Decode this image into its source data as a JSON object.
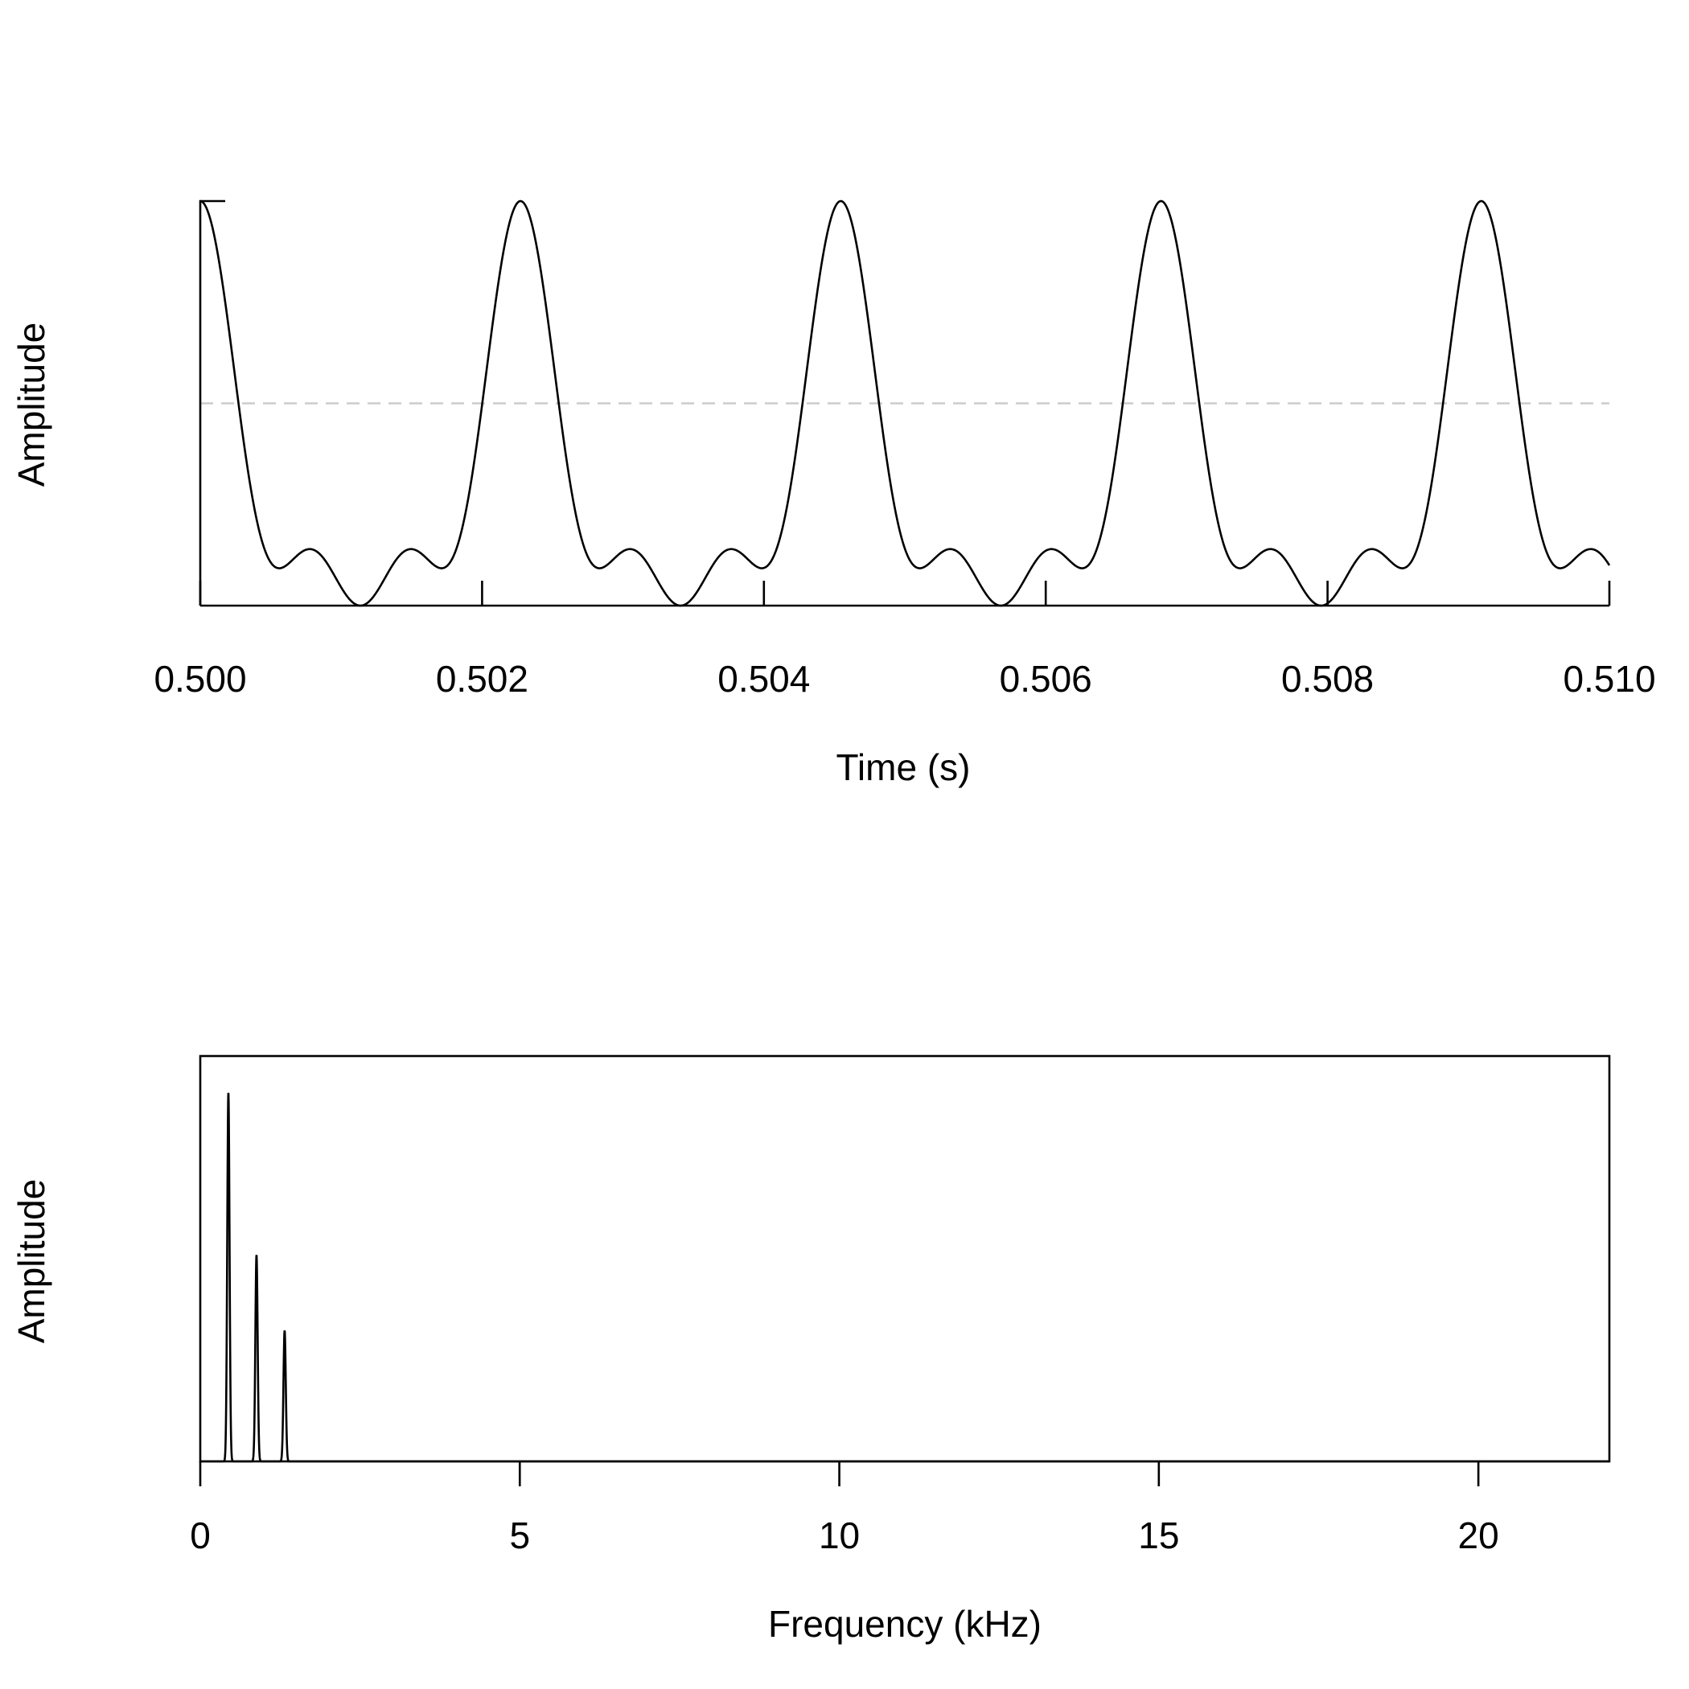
{
  "chart_data": [
    {
      "type": "line",
      "xlabel": "Time (s)",
      "ylabel": "Amplitude",
      "xlim": [
        0.5,
        0.51
      ],
      "ylim": [
        -1,
        1
      ],
      "x_ticks": [
        0.5,
        0.502,
        0.504,
        0.506,
        0.508,
        0.51
      ],
      "x_tick_labels": [
        "0.500",
        "0.502",
        "0.504",
        "0.506",
        "0.508",
        "0.510"
      ],
      "reference_line": {
        "y": 0,
        "style": "dashed",
        "color": "#cccccc"
      },
      "signal": {
        "fundamental_hz": 440,
        "harmonics": [
          {
            "multiple": 1,
            "amplitude": 1.0
          },
          {
            "multiple": 2,
            "amplitude": 0.55
          },
          {
            "multiple": 3,
            "amplitude": 0.35
          }
        ],
        "normalized": true
      },
      "axes": {
        "left": true,
        "bottom": true,
        "box": false
      },
      "grid": false,
      "line_color": "#000000"
    },
    {
      "type": "line",
      "xlabel": "Frequency (kHz)",
      "ylabel": "Amplitude",
      "xlim": [
        0,
        22.05
      ],
      "ylim": [
        0,
        1.1
      ],
      "x_ticks": [
        0,
        5,
        10,
        15,
        20
      ],
      "x_tick_labels": [
        "0",
        "5",
        "10",
        "15",
        "20"
      ],
      "peaks": [
        {
          "x": 0.44,
          "y": 1.0
        },
        {
          "x": 0.88,
          "y": 0.56
        },
        {
          "x": 1.32,
          "y": 0.355
        }
      ],
      "axes": {
        "box": true
      },
      "grid": false,
      "line_color": "#000000"
    }
  ]
}
